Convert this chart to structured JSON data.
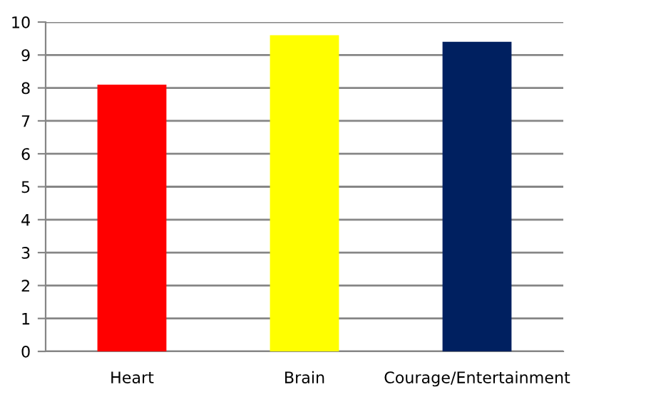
{
  "chart_data": {
    "type": "bar",
    "categories": [
      "Heart",
      "Brain",
      "Courage/Entertainment"
    ],
    "values": [
      8.1,
      9.6,
      9.4
    ],
    "colors": [
      "#ff0000",
      "#ffff00",
      "#002060"
    ],
    "ylim": [
      0,
      10
    ],
    "yticks": [
      0,
      1,
      2,
      3,
      4,
      5,
      6,
      7,
      8,
      9,
      10
    ],
    "grid": "y"
  }
}
